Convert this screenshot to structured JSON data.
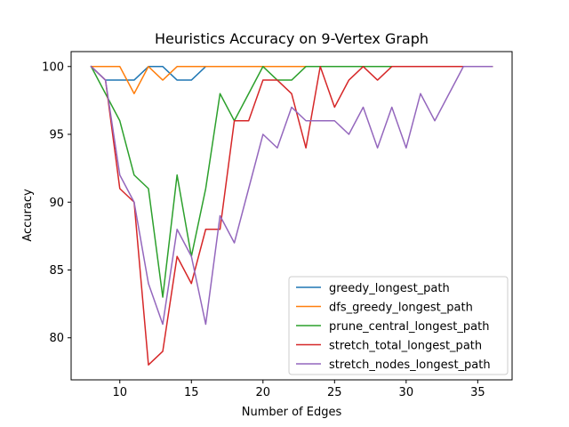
{
  "chart_data": {
    "type": "line",
    "title": "Heuristics Accuracy on 9-Vertex Graph",
    "xlabel": "Number of Edges",
    "ylabel": "Accuracy",
    "xlim": [
      6.6,
      37.4
    ],
    "ylim": [
      76.9,
      101.1
    ],
    "xticks": [
      10,
      15,
      20,
      25,
      30,
      35
    ],
    "yticks": [
      80,
      85,
      90,
      95,
      100
    ],
    "legend_position": "lower-right",
    "grid": false,
    "x": [
      8,
      9,
      10,
      11,
      12,
      13,
      14,
      15,
      16,
      17,
      18,
      19,
      20,
      21,
      22,
      23,
      24,
      25,
      26,
      27,
      28,
      29,
      30,
      31,
      32,
      33,
      34,
      35,
      36
    ],
    "series": [
      {
        "name": "greedy_longest_path",
        "color": "#1f77b4",
        "values": [
          100,
          99,
          99,
          99,
          100,
          100,
          99,
          99,
          100,
          100,
          100,
          100,
          100,
          100,
          100,
          100,
          100,
          100,
          100,
          100,
          100,
          100,
          100,
          100,
          100,
          100,
          100,
          100,
          100
        ]
      },
      {
        "name": "dfs_greedy_longest_path",
        "color": "#ff7f0e",
        "values": [
          100,
          100,
          100,
          98,
          100,
          99,
          100,
          100,
          100,
          100,
          100,
          100,
          100,
          100,
          100,
          100,
          100,
          100,
          100,
          100,
          100,
          100,
          100,
          100,
          100,
          100,
          100,
          100,
          100
        ]
      },
      {
        "name": "prune_central_longest_path",
        "color": "#2ca02c",
        "values": [
          100,
          98,
          96,
          92,
          91,
          83,
          92,
          86,
          91,
          98,
          96,
          98,
          100,
          99,
          99,
          100,
          100,
          100,
          100,
          100,
          100,
          100,
          100,
          100,
          100,
          100,
          100,
          100,
          100
        ]
      },
      {
        "name": "stretch_total_longest_path",
        "color": "#d62728",
        "values": [
          100,
          99,
          91,
          90,
          78,
          79,
          86,
          84,
          88,
          88,
          96,
          96,
          99,
          99,
          98,
          94,
          100,
          97,
          99,
          100,
          99,
          100,
          100,
          100,
          100,
          100,
          100,
          100,
          100
        ]
      },
      {
        "name": "stretch_nodes_longest_path",
        "color": "#9467bd",
        "values": [
          100,
          99,
          92,
          90,
          84,
          81,
          88,
          86,
          81,
          89,
          87,
          91,
          95,
          94,
          97,
          96,
          96,
          96,
          95,
          97,
          94,
          97,
          94,
          98,
          96,
          98,
          100,
          100,
          100
        ]
      }
    ]
  }
}
